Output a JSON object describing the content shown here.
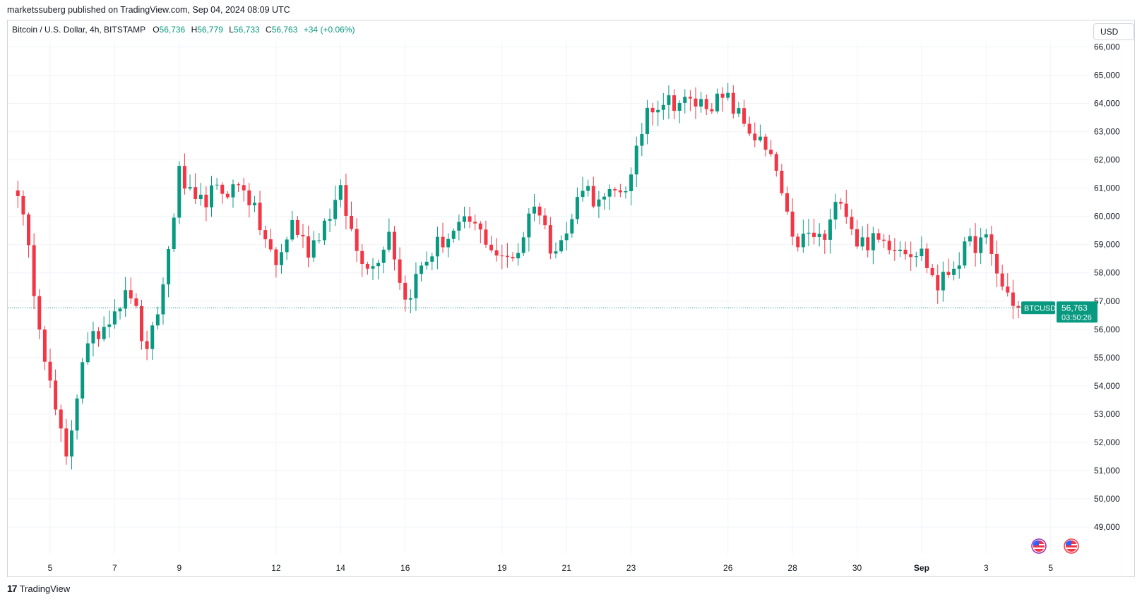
{
  "publisher": "marketssuberg published on TradingView.com, Sep 04, 2024 08:09 UTC",
  "legend": {
    "symbol": "Bitcoin / U.S. Dollar, 4h, BITSTAMP",
    "o_label": "O",
    "o": "56,736",
    "h_label": "H",
    "h": "56,779",
    "l_label": "L",
    "l": "56,733",
    "c_label": "C",
    "c": "56,763",
    "change": "+34 (+0.06%)"
  },
  "currency": "USD",
  "price_tag": {
    "symbol": "BTCUSD",
    "price": "56,763",
    "countdown": "03:50:26"
  },
  "footer": {
    "brand": "TradingView"
  },
  "colors": {
    "up": "#089981",
    "down": "#f23645",
    "grid": "#f0f3fa",
    "last_price": "#089981"
  },
  "icons": [
    "us-flag-event-icon",
    "us-flag-event-icon"
  ],
  "chart_data": {
    "type": "candlestick",
    "title": "Bitcoin / U.S. Dollar, 4h, BITSTAMP",
    "ylim": [
      48000,
      66500
    ],
    "y_ticks": [
      "49,000",
      "50,000",
      "51,000",
      "52,000",
      "53,000",
      "54,000",
      "55,000",
      "56,000",
      "57,000",
      "58,000",
      "59,000",
      "60,000",
      "61,000",
      "62,000",
      "63,000",
      "64,000",
      "65,000",
      "66,000"
    ],
    "x_ticks": [
      "5",
      "7",
      "9",
      "12",
      "14",
      "16",
      "19",
      "21",
      "23",
      "26",
      "28",
      "30",
      "Sep",
      "3",
      "5"
    ],
    "last_price": 56763,
    "anchors": [
      {
        "t": "Aug 04",
        "price": 61000
      },
      {
        "t": "Aug 05",
        "price": 54000
      },
      {
        "t": "Aug 05 12:00",
        "price": 51300
      },
      {
        "t": "Aug 06",
        "price": 55000
      },
      {
        "t": "Aug 07",
        "price": 56800
      },
      {
        "t": "Aug 07 12:00",
        "price": 57300
      },
      {
        "t": "Aug 08",
        "price": 55000
      },
      {
        "t": "Aug 08 12:00",
        "price": 57500
      },
      {
        "t": "Aug 09",
        "price": 61500
      },
      {
        "t": "Aug 09 12:00",
        "price": 60300
      },
      {
        "t": "Aug 10",
        "price": 60800
      },
      {
        "t": "Aug 11",
        "price": 61100
      },
      {
        "t": "Aug 12",
        "price": 58200
      },
      {
        "t": "Aug 12 12:00",
        "price": 59800
      },
      {
        "t": "Aug 13",
        "price": 58800
      },
      {
        "t": "Aug 14",
        "price": 60800
      },
      {
        "t": "Aug 14 12:00",
        "price": 58800
      },
      {
        "t": "Aug 15",
        "price": 58200
      },
      {
        "t": "Aug 15 12:00",
        "price": 59500
      },
      {
        "t": "Aug 16",
        "price": 57000
      },
      {
        "t": "Aug 16 12:00",
        "price": 58200
      },
      {
        "t": "Aug 17",
        "price": 59000
      },
      {
        "t": "Aug 18",
        "price": 59800
      },
      {
        "t": "Aug 18 12:00",
        "price": 59200
      },
      {
        "t": "Aug 19",
        "price": 58400
      },
      {
        "t": "Aug 19 12:00",
        "price": 58800
      },
      {
        "t": "Aug 20",
        "price": 60600
      },
      {
        "t": "Aug 20 12:00",
        "price": 59000
      },
      {
        "t": "Aug 21",
        "price": 59300
      },
      {
        "t": "Aug 21 12:00",
        "price": 61200
      },
      {
        "t": "Aug 22",
        "price": 60400
      },
      {
        "t": "Aug 22 12:00",
        "price": 60800
      },
      {
        "t": "Aug 23",
        "price": 61300
      },
      {
        "t": "Aug 23 12:00",
        "price": 63900
      },
      {
        "t": "Aug 24",
        "price": 64100
      },
      {
        "t": "Aug 25",
        "price": 64000
      },
      {
        "t": "Aug 26",
        "price": 64100
      },
      {
        "t": "Aug 26 12:00",
        "price": 63300
      },
      {
        "t": "Aug 27",
        "price": 62600
      },
      {
        "t": "Aug 27 12:00",
        "price": 61600
      },
      {
        "t": "Aug 28",
        "price": 59000
      },
      {
        "t": "Aug 28 12:00",
        "price": 59300
      },
      {
        "t": "Aug 29",
        "price": 59200
      },
      {
        "t": "Aug 29 12:00",
        "price": 60800
      },
      {
        "t": "Aug 30",
        "price": 59100
      },
      {
        "t": "Aug 31",
        "price": 59100
      },
      {
        "t": "Sep 01",
        "price": 58700
      },
      {
        "t": "Sep 01 12:00",
        "price": 57500
      },
      {
        "t": "Sep 02",
        "price": 58300
      },
      {
        "t": "Sep 02 12:00",
        "price": 59000
      },
      {
        "t": "Sep 03",
        "price": 59100
      },
      {
        "t": "Sep 03 12:00",
        "price": 57500
      },
      {
        "t": "Sep 04",
        "price": 56763
      }
    ]
  }
}
